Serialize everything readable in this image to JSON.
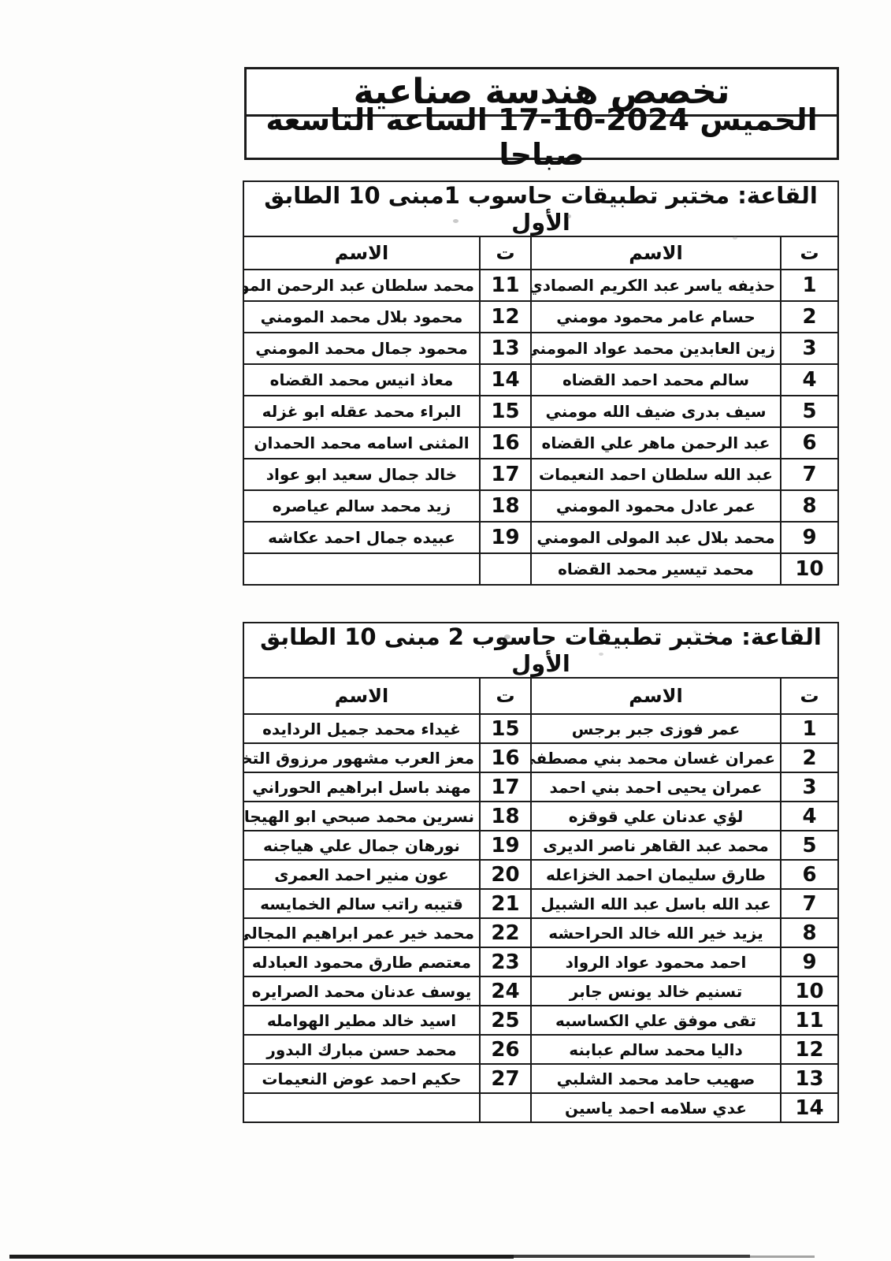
{
  "header": {
    "specialization": "تخصص هندسة صناعية",
    "datetime": "الخميس 2024-10-17 الساعة التاسعة صباحا"
  },
  "tables": [
    {
      "title": "القاعة: مختبر تطبيقات حاسوب 1مبنى 10 الطابق الأول",
      "col_headers": {
        "serial": "ت",
        "name": "الاسم"
      },
      "rows": [
        {
          "serial_right": "1",
          "name_right": "حذيفه ياسر عبد الكريم الصمادي",
          "serial_left": "11",
          "name_left": "محمد سلطان عبد الرحمن المومني"
        },
        {
          "serial_right": "2",
          "name_right": "حسام عامر محمود مومني",
          "serial_left": "12",
          "name_left": "محمود بلال محمد المومني"
        },
        {
          "serial_right": "3",
          "name_right": "زين العابدين محمد عواد المومني",
          "serial_left": "13",
          "name_left": "محمود جمال محمد المومني"
        },
        {
          "serial_right": "4",
          "name_right": "سالم محمد احمد القضاه",
          "serial_left": "14",
          "name_left": "معاذ انيس محمد القضاه"
        },
        {
          "serial_right": "5",
          "name_right": "سيف بدرى ضيف الله مومني",
          "serial_left": "15",
          "name_left": "البراء محمد عقله ابو غزله"
        },
        {
          "serial_right": "6",
          "name_right": "عبد الرحمن ماهر علي القضاه",
          "serial_left": "16",
          "name_left": "المثنى اسامه محمد الحمدان"
        },
        {
          "serial_right": "7",
          "name_right": "عبد الله سلطان احمد النعيمات",
          "serial_left": "17",
          "name_left": "خالد جمال سعيد ابو عواد"
        },
        {
          "serial_right": "8",
          "name_right": "عمر عادل محمود المومني",
          "serial_left": "18",
          "name_left": "زيد محمد سالم عياصره"
        },
        {
          "serial_right": "9",
          "name_right": "محمد بلال عبد المولى المومني",
          "serial_left": "19",
          "name_left": "عبيده جمال احمد عكاشه"
        },
        {
          "serial_right": "10",
          "name_right": "محمد تيسير محمد القضاه",
          "serial_left": "",
          "name_left": ""
        }
      ]
    },
    {
      "title": "القاعة: مختبر تطبيقات حاسوب 2 مبنى 10 الطابق الأول",
      "col_headers": {
        "serial": "ت",
        "name": "الاسم"
      },
      "rows": [
        {
          "serial_right": "1",
          "name_right": "عمر فوزى جبر برجس",
          "serial_left": "15",
          "name_left": "غيداء محمد جميل الردايده"
        },
        {
          "serial_right": "2",
          "name_right": "عمران غسان محمد بني مصطفى",
          "serial_left": "16",
          "name_left": "معز العرب مشهور مرزوق التخيمي"
        },
        {
          "serial_right": "3",
          "name_right": "عمران يحيى احمد بني احمد",
          "serial_left": "17",
          "name_left": "مهند باسل ابراهيم الحوراني"
        },
        {
          "serial_right": "4",
          "name_right": "لؤي عدنان علي قوقزه",
          "serial_left": "18",
          "name_left": "نسرين محمد صبحي ابو الهيجاء"
        },
        {
          "serial_right": "5",
          "name_right": "محمد عبد القاهر ناصر الديرى",
          "serial_left": "19",
          "name_left": "نورهان جمال علي هياجنه"
        },
        {
          "serial_right": "6",
          "name_right": "طارق سليمان احمد الخزاعله",
          "serial_left": "20",
          "name_left": "عون منير احمد العمرى"
        },
        {
          "serial_right": "7",
          "name_right": "عبد الله باسل عبد الله الشبيل",
          "serial_left": "21",
          "name_left": "قتيبه راتب سالم الخمايسه"
        },
        {
          "serial_right": "8",
          "name_right": "يزيد خير الله خالد الحراحشه",
          "serial_left": "22",
          "name_left": "محمد خير عمر ابراهيم المجالي"
        },
        {
          "serial_right": "9",
          "name_right": "احمد محمود عواد الرواد",
          "serial_left": "23",
          "name_left": "معتصم طارق محمود العبادله"
        },
        {
          "serial_right": "10",
          "name_right": "تسنيم خالد يونس جابر",
          "serial_left": "24",
          "name_left": "يوسف عدنان محمد الصرايره"
        },
        {
          "serial_right": "11",
          "name_right": "تقى موفق علي الكساسبه",
          "serial_left": "25",
          "name_left": "اسيد خالد مطير الهوامله"
        },
        {
          "serial_right": "12",
          "name_right": "داليا محمد سالم عبابنه",
          "serial_left": "26",
          "name_left": "محمد حسن مبارك البدور"
        },
        {
          "serial_right": "13",
          "name_right": "صهيب حامد محمد الشلبي",
          "serial_left": "27",
          "name_left": "حكيم احمد عوض النعيمات"
        },
        {
          "serial_right": "14",
          "name_right": "عدي سلامه احمد ياسين",
          "serial_left": "",
          "name_left": ""
        }
      ]
    }
  ]
}
